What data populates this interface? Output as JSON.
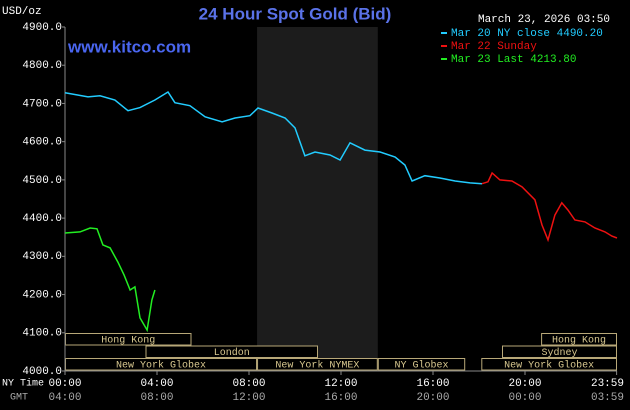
{
  "chart_data": {
    "type": "line",
    "title": "24 Hour Spot Gold (Bid)",
    "watermark": "www.kitco.com",
    "timestamp": "March 23, 2026 03:50",
    "y_label": "USD/oz",
    "x_label": "NY Time",
    "x2_label": "GMT",
    "xlim": [
      0,
      24
    ],
    "xticks": [
      {
        "value": 0,
        "label": "00:00"
      },
      {
        "value": 4,
        "label": "04:00"
      },
      {
        "value": 8,
        "label": "08:00"
      },
      {
        "value": 12,
        "label": "12:00"
      },
      {
        "value": 16,
        "label": "16:00"
      },
      {
        "value": 20,
        "label": "20:00"
      },
      {
        "value": 23.983,
        "label": "23:59"
      }
    ],
    "x2_tick_labels": [
      "04:00",
      "08:00",
      "12:00",
      "16:00",
      "20:00",
      "00:00",
      "03:59"
    ],
    "ylim": [
      4000,
      4900
    ],
    "yticks": [
      {
        "value": 4000,
        "label": "4000.0"
      },
      {
        "value": 4100,
        "label": "4100.0"
      },
      {
        "value": 4200,
        "label": "4200.0"
      },
      {
        "value": 4300,
        "label": "4300.0"
      },
      {
        "value": 4400,
        "label": "4400.0"
      },
      {
        "value": 4500,
        "label": "4500.0"
      },
      {
        "value": 4600,
        "label": "4600.0"
      },
      {
        "value": 4700,
        "label": "4700.0"
      },
      {
        "value": 4800,
        "label": "4800.0"
      },
      {
        "value": 4900,
        "label": "4900.0"
      }
    ],
    "shaded_range": [
      8.35,
      13.6
    ],
    "markets": [
      {
        "name": "Hong Kong",
        "start": 0,
        "end": 5.5
      },
      {
        "name": "London",
        "start": 3.5,
        "end": 11
      },
      {
        "name": "New York Globex",
        "start": 0,
        "end": 8.35
      },
      {
        "name": "New York NYMEX",
        "start": 8.35,
        "end": 13.6
      },
      {
        "name": "NY Globex",
        "start": 13.6,
        "end": 17.4
      },
      {
        "name": "Sydney",
        "start": 19,
        "end": 24
      },
      {
        "name": "Hong Kong",
        "start": 20.7,
        "end": 24
      },
      {
        "name": "New York Globex",
        "start": 18.1,
        "end": 24
      }
    ],
    "series": [
      {
        "name": "Mar 20 NY close 4490.20",
        "color": "#22ccff",
        "x": [
          0,
          1.0,
          1.52,
          2.17,
          2.74,
          3.26,
          3.91,
          4.48,
          4.78,
          5.43,
          6.09,
          6.83,
          7.39,
          8.04,
          8.39,
          9.0,
          9.57,
          10.0,
          10.43,
          10.87,
          11.52,
          11.96,
          12.39,
          13.04,
          13.7,
          14.35,
          14.78,
          15.09,
          15.65,
          16.3,
          16.96,
          17.61,
          18.13
        ],
        "values": [
          4728,
          4717,
          4720,
          4709,
          4681,
          4689,
          4709,
          4730,
          4702,
          4694,
          4665,
          4652,
          4662,
          4668,
          4688,
          4675,
          4662,
          4636,
          4563,
          4573,
          4565,
          4552,
          4597,
          4578,
          4573,
          4560,
          4539,
          4497,
          4511,
          4505,
          4497,
          4492,
          4490
        ]
      },
      {
        "name": "Mar 22 Sunday",
        "color": "#ee1111",
        "x": [
          18.13,
          18.39,
          18.57,
          18.91,
          19.43,
          19.87,
          20.43,
          20.74,
          21.0,
          21.3,
          21.6,
          21.87,
          22.17,
          22.61,
          23.04,
          23.48,
          23.78,
          24.0
        ],
        "values": [
          4490,
          4495,
          4518,
          4500,
          4497,
          4482,
          4448,
          4382,
          4343,
          4408,
          4440,
          4421,
          4395,
          4390,
          4374,
          4364,
          4353,
          4348
        ]
      },
      {
        "name": "Mar 23 Last 4213.80",
        "color": "#22ee22",
        "x": [
          0,
          0.65,
          1.09,
          1.39,
          1.65,
          1.96,
          2.3,
          2.57,
          2.83,
          3.04,
          3.26,
          3.57,
          3.78,
          3.91
        ],
        "values": [
          4361,
          4364,
          4374,
          4372,
          4330,
          4322,
          4285,
          4251,
          4212,
          4220,
          4139,
          4107,
          4186,
          4212
        ]
      }
    ]
  }
}
